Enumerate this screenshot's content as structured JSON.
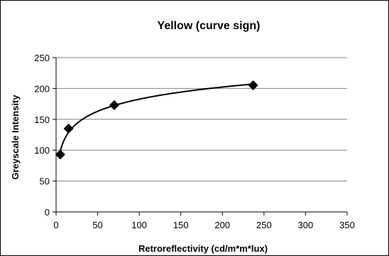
{
  "chart_data": {
    "type": "scatter",
    "title": "Yellow (curve sign)",
    "xlabel": "Retroreflectivity (cd/m*m*lux)",
    "ylabel": "Greyscale Intensity",
    "xlim": [
      0,
      350
    ],
    "ylim": [
      0,
      250
    ],
    "xticks": [
      "0",
      "50",
      "100",
      "150",
      "200",
      "250",
      "300",
      "350"
    ],
    "yticks": [
      "0",
      "50",
      "100",
      "150",
      "200",
      "250"
    ],
    "grid": "horizontal",
    "legend": "none",
    "series": [
      {
        "marker": "diamond",
        "trendline": "logarithmic",
        "color": "#000000",
        "points": [
          {
            "x": 5,
            "y": 93
          },
          {
            "x": 15,
            "y": 135
          },
          {
            "x": 70,
            "y": 173
          },
          {
            "x": 237,
            "y": 205
          }
        ]
      }
    ]
  }
}
